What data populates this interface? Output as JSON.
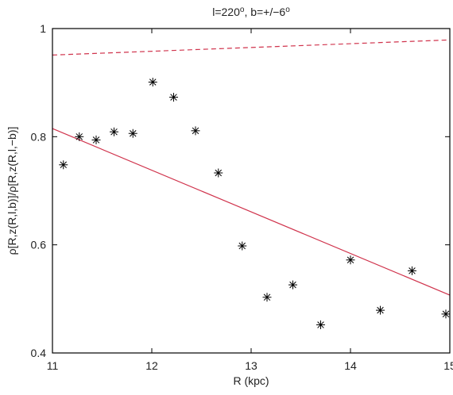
{
  "chart_data": {
    "type": "scatter",
    "title": "l=220°, b=+/−6°",
    "title_parts": {
      "l_text": "l=220",
      "mid_text": ", b=+/−6",
      "degree": "o"
    },
    "xlabel": "R (kpc)",
    "ylabel": "ρ[R,z(R,l,b)]/ρ[R,z(R,l,−b)]",
    "xlim": [
      11,
      15
    ],
    "ylim": [
      0.4,
      1.0
    ],
    "x_ticks": [
      11,
      12,
      13,
      14,
      15
    ],
    "y_ticks": [
      0.4,
      0.6,
      0.8,
      1.0
    ],
    "x_tick_labels": [
      "11",
      "12",
      "13",
      "14",
      "15"
    ],
    "y_tick_labels": [
      "0.4",
      "0.6",
      "0.8",
      "1"
    ],
    "grid": false,
    "legend": "none",
    "series": [
      {
        "marker": "asterisk",
        "color": "#000000",
        "points": [
          {
            "x": 11.11,
            "y": 0.748
          },
          {
            "x": 11.27,
            "y": 0.8
          },
          {
            "x": 11.44,
            "y": 0.794
          },
          {
            "x": 11.62,
            "y": 0.809
          },
          {
            "x": 11.81,
            "y": 0.806
          },
          {
            "x": 12.01,
            "y": 0.901
          },
          {
            "x": 12.22,
            "y": 0.873
          },
          {
            "x": 12.44,
            "y": 0.811
          },
          {
            "x": 12.67,
            "y": 0.733
          },
          {
            "x": 12.91,
            "y": 0.598
          },
          {
            "x": 13.16,
            "y": 0.503
          },
          {
            "x": 13.42,
            "y": 0.526
          },
          {
            "x": 13.7,
            "y": 0.452
          },
          {
            "x": 14.0,
            "y": 0.572
          },
          {
            "x": 14.3,
            "y": 0.479
          },
          {
            "x": 14.62,
            "y": 0.552
          },
          {
            "x": 14.96,
            "y": 0.472
          }
        ]
      }
    ],
    "lines": [
      {
        "style": "solid",
        "color": "#d0334c",
        "x": [
          11,
          15
        ],
        "y": [
          0.815,
          0.507
        ]
      },
      {
        "style": "dashed",
        "color": "#d0334c",
        "x": [
          11,
          15
        ],
        "y": [
          0.951,
          0.979
        ]
      }
    ]
  }
}
